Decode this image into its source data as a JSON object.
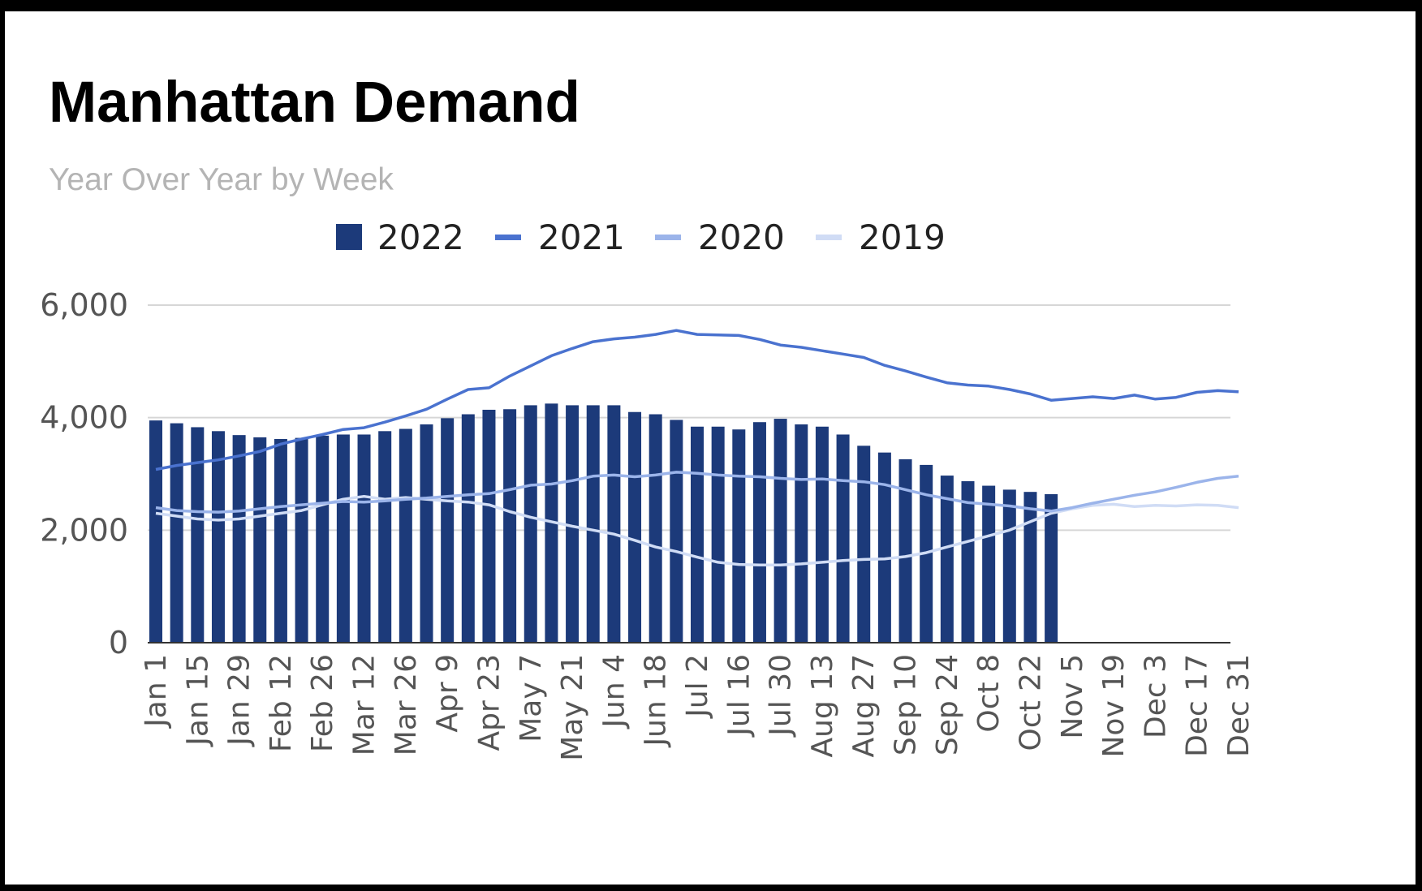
{
  "chart_data": {
    "type": "bar",
    "title": "Manhattan Demand",
    "subtitle": "Year Over Year by Week",
    "ylim": [
      0,
      6000
    ],
    "yticks": [
      0,
      2000,
      4000,
      6000
    ],
    "ytick_labels": [
      "0",
      "2,000",
      "4,000",
      "6,000"
    ],
    "grid": true,
    "legend_position": "top",
    "x_tick_labels": [
      "Jan 1",
      "Jan 15",
      "Jan 29",
      "Feb 12",
      "Feb 26",
      "Mar 12",
      "Mar 26",
      "Apr 9",
      "Apr 23",
      "May 7",
      "May 21",
      "Jun 4",
      "Jun 18",
      "Jul 2",
      "Jul 16",
      "Jul 30",
      "Aug 13",
      "Aug 27",
      "Sep 10",
      "Sep 24",
      "Oct 8",
      "Oct 22",
      "Nov 5",
      "Nov 19",
      "Dec 3",
      "Dec 17",
      "Dec 31"
    ],
    "series": [
      {
        "name": "2022",
        "type": "bar",
        "color": "#1c3a7a",
        "values": [
          3950,
          3900,
          3830,
          3760,
          3690,
          3650,
          3620,
          3640,
          3680,
          3700,
          3700,
          3760,
          3800,
          3880,
          3990,
          4060,
          4140,
          4150,
          4220,
          4250,
          4220,
          4220,
          4220,
          4100,
          4060,
          3960,
          3840,
          3840,
          3790,
          3920,
          3980,
          3880,
          3840,
          3700,
          3500,
          3380,
          3260,
          3160,
          2970,
          2870,
          2790,
          2720,
          2680,
          2640
        ]
      },
      {
        "name": "2021",
        "type": "line",
        "color": "#4a72cf",
        "values": [
          3080,
          3150,
          3200,
          3250,
          3320,
          3400,
          3530,
          3620,
          3700,
          3790,
          3820,
          3920,
          4030,
          4150,
          4330,
          4500,
          4530,
          4740,
          4920,
          5100,
          5230,
          5350,
          5400,
          5430,
          5480,
          5550,
          5480,
          5470,
          5460,
          5390,
          5290,
          5250,
          5190,
          5130,
          5070,
          4930,
          4830,
          4720,
          4620,
          4580,
          4560,
          4500,
          4420,
          4310,
          4340,
          4370,
          4340,
          4400,
          4330,
          4360,
          4450,
          4480,
          4460
        ]
      },
      {
        "name": "2020",
        "type": "line",
        "color": "#9bb4ea",
        "values": [
          2400,
          2350,
          2330,
          2320,
          2340,
          2380,
          2420,
          2450,
          2480,
          2510,
          2500,
          2520,
          2550,
          2570,
          2600,
          2630,
          2650,
          2720,
          2800,
          2820,
          2880,
          2960,
          2980,
          2950,
          2980,
          3030,
          3010,
          2980,
          2960,
          2950,
          2920,
          2900,
          2910,
          2880,
          2860,
          2810,
          2720,
          2630,
          2560,
          2490,
          2460,
          2430,
          2380,
          2340,
          2400,
          2480,
          2550,
          2620,
          2680,
          2760,
          2850,
          2920,
          2960
        ]
      },
      {
        "name": "2019",
        "type": "line",
        "color": "#d0dcf5",
        "values": [
          2300,
          2250,
          2200,
          2180,
          2200,
          2250,
          2300,
          2350,
          2450,
          2550,
          2600,
          2550,
          2580,
          2550,
          2520,
          2500,
          2450,
          2330,
          2230,
          2150,
          2070,
          2000,
          1930,
          1820,
          1700,
          1620,
          1520,
          1430,
          1390,
          1380,
          1380,
          1400,
          1430,
          1460,
          1480,
          1490,
          1530,
          1600,
          1700,
          1800,
          1900,
          2000,
          2150,
          2300,
          2380,
          2440,
          2460,
          2420,
          2440,
          2430,
          2450,
          2440,
          2400
        ]
      }
    ]
  }
}
